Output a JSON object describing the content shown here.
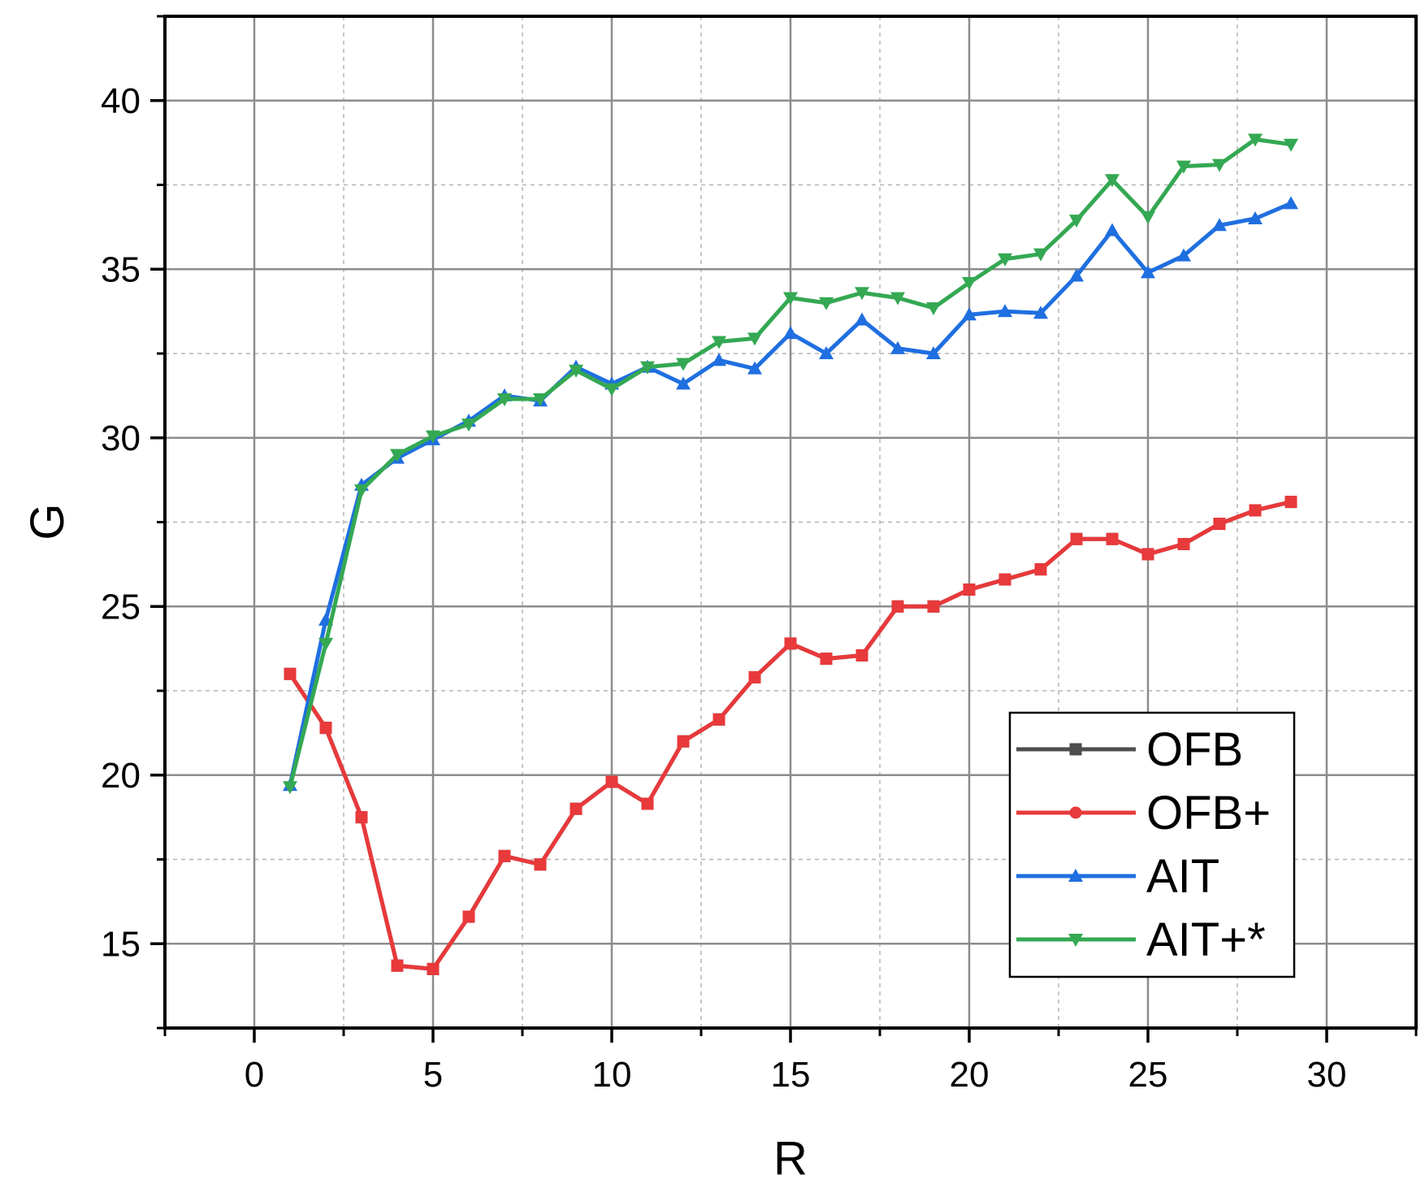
{
  "chart_data": {
    "type": "line",
    "title": "",
    "xlabel": "R",
    "ylabel": "G",
    "xlim": [
      -2.5,
      32.5
    ],
    "ylim": [
      12.5,
      42.5
    ],
    "xticks": [
      0,
      5,
      10,
      15,
      20,
      25,
      30
    ],
    "yticks": [
      15,
      20,
      25,
      30,
      35,
      40
    ],
    "grid": true,
    "legend": "bottom-right",
    "x": [
      1,
      2,
      3,
      4,
      5,
      6,
      7,
      8,
      9,
      10,
      11,
      12,
      13,
      14,
      15,
      16,
      17,
      18,
      19,
      20,
      21,
      22,
      23,
      24,
      25,
      26,
      27,
      28,
      29
    ],
    "series": [
      {
        "name": "OFB",
        "color": "#4d4d4d",
        "marker": "square",
        "values": [
          23.0,
          21.4,
          18.75,
          14.35,
          14.25,
          15.8,
          17.6,
          17.35,
          19.0,
          19.8,
          19.15,
          21.0,
          21.65,
          22.9,
          23.9,
          23.45,
          23.55,
          25.0,
          25.0,
          25.5,
          25.8,
          26.1,
          27.0,
          27.0,
          26.55,
          26.85,
          27.45,
          27.85,
          28.1
        ]
      },
      {
        "name": "OFB+",
        "color": "#e8393b",
        "marker": "circle",
        "values": [
          23.0,
          21.4,
          18.75,
          14.35,
          14.25,
          15.8,
          17.6,
          17.35,
          19.0,
          19.8,
          19.15,
          21.0,
          21.65,
          22.9,
          23.9,
          23.45,
          23.55,
          25.0,
          25.0,
          25.5,
          25.8,
          26.1,
          27.0,
          27.0,
          26.55,
          26.85,
          27.45,
          27.85,
          28.1
        ]
      },
      {
        "name": "AIT",
        "color": "#1f6fe0",
        "marker": "triangle-up",
        "values": [
          19.7,
          24.6,
          28.6,
          29.4,
          29.95,
          30.5,
          31.25,
          31.1,
          32.1,
          31.6,
          32.1,
          31.6,
          32.3,
          32.05,
          33.1,
          32.5,
          33.5,
          32.65,
          32.5,
          33.65,
          33.75,
          33.7,
          34.8,
          36.15,
          34.9,
          35.4,
          36.3,
          36.5,
          36.95
        ]
      },
      {
        "name": "AIT+*",
        "color": "#34a853",
        "marker": "triangle-down",
        "values": [
          19.65,
          23.9,
          28.45,
          29.5,
          30.05,
          30.4,
          31.15,
          31.15,
          32.0,
          31.45,
          32.1,
          32.2,
          32.85,
          32.95,
          34.15,
          34.0,
          34.3,
          34.15,
          33.85,
          34.6,
          35.3,
          35.45,
          36.45,
          37.65,
          36.55,
          38.05,
          38.1,
          38.85,
          38.7
        ]
      }
    ]
  }
}
